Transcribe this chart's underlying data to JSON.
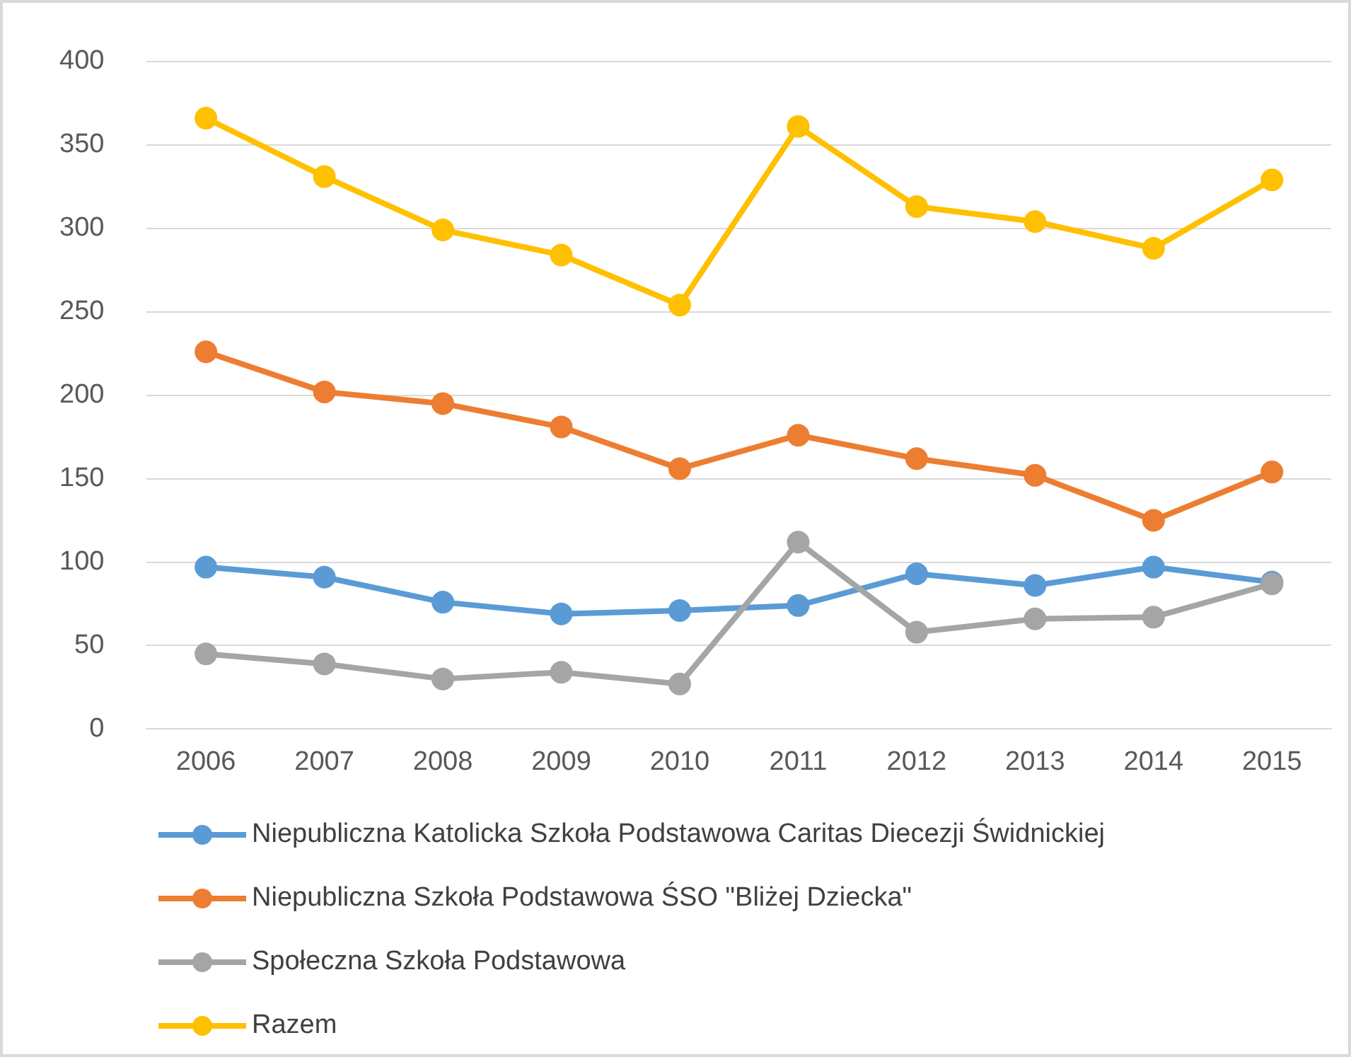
{
  "chart_data": {
    "type": "line",
    "categories": [
      "2006",
      "2007",
      "2008",
      "2009",
      "2010",
      "2011",
      "2012",
      "2013",
      "2014",
      "2015"
    ],
    "series": [
      {
        "name": "Niepubliczna Katolicka Szkoła Podstawowa Caritas Diecezji Świdnickiej",
        "color": "#5b9bd5",
        "values": [
          97,
          91,
          76,
          69,
          71,
          74,
          93,
          86,
          97,
          88
        ]
      },
      {
        "name": "Niepubliczna Szkoła Podstawowa ŚSO \"Bliżej Dziecka\"",
        "color": "#ed7d31",
        "values": [
          226,
          202,
          195,
          181,
          156,
          176,
          162,
          152,
          125,
          154
        ]
      },
      {
        "name": "Społeczna Szkoła Podstawowa",
        "color": "#a5a5a5",
        "values": [
          45,
          39,
          30,
          34,
          27,
          112,
          58,
          66,
          67,
          87
        ]
      },
      {
        "name": "Razem",
        "color": "#ffc000",
        "values": [
          366,
          331,
          299,
          284,
          254,
          361,
          313,
          304,
          288,
          329
        ]
      }
    ],
    "ylim": [
      0,
      400
    ],
    "yticks": [
      0,
      50,
      100,
      150,
      200,
      250,
      300,
      350,
      400
    ],
    "grid": "y",
    "legend": "bottom",
    "marker": "circle",
    "line_style": "solid"
  }
}
